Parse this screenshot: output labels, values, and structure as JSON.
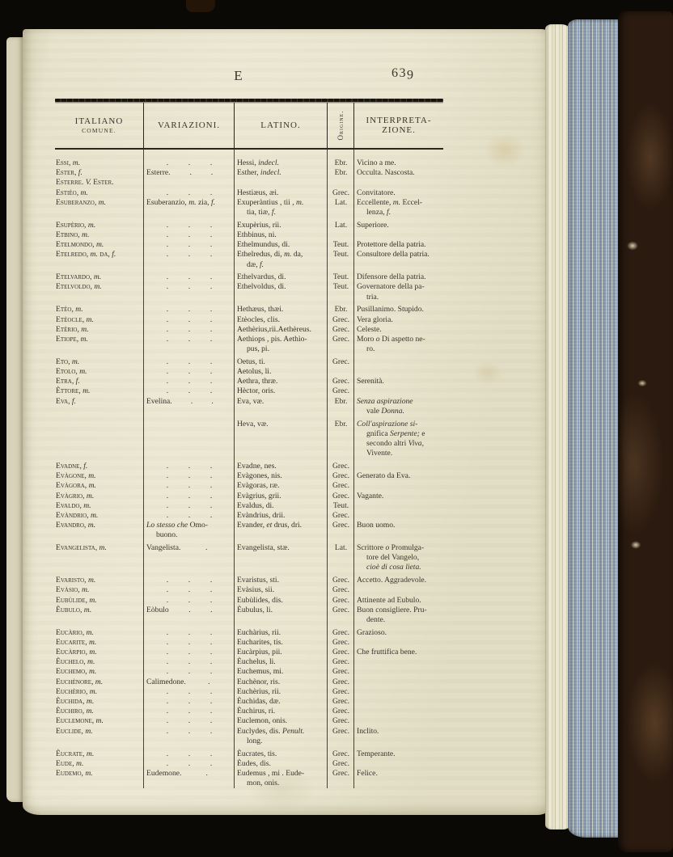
{
  "page": {
    "section_letter": "E",
    "page_number": "639"
  },
  "table": {
    "headers": {
      "italiano_line1": "ITALIANO",
      "italiano_line2": "COMUNE.",
      "variazioni": "VARIAZIONI.",
      "latino": "LATINO.",
      "origine": "Origine.",
      "interpretazione_line1": "INTERPRETA-",
      "interpretazione_line2": "ZIONE."
    },
    "rows": [
      {
        "n": "Essi, *m.*",
        "vd": 3,
        "l": "Hessi, *indecl.*",
        "o": "Ebr.",
        "i": "Vicino a me."
      },
      {
        "n": "Ester, *f.*",
        "v": "Esterre.",
        "vd": 2,
        "l": "Esther, *indecl.*",
        "o": "Ebr.",
        "i": "Occulta. Nascosta."
      },
      {
        "n": "Esterre. *V.* Ester.",
        "l": "",
        "o": "",
        "i": ""
      },
      {
        "n": "Estièo, *m.*",
        "vd": 3,
        "l": "Hestiæus, æi.",
        "o": "Grec.",
        "i": "Convitatore."
      },
      {
        "n": "Esuberanzo, *m.*",
        "v": "Esuberanzio, *m.* zia, *f.*",
        "l": "Exuperàntius , tii , *m.*\ntia, tiæ, *f.*",
        "o": "Lat.",
        "i": "Eccellente, *m.* Eccel-\nlenza, *f.*"
      },
      {
        "g": 1,
        "n": "Esupèrio, *m.*",
        "vd": 3,
        "l": "Exupèrius, rii.",
        "o": "Lat.",
        "i": "Superiore."
      },
      {
        "n": "Etbino, *m.*",
        "vd": 3,
        "l": "Ethbinus, ni.",
        "o": "",
        "i": ""
      },
      {
        "n": "Etelmondo, *m.*",
        "vd": 3,
        "l": "Ethelmundus, di.",
        "o": "Teut.",
        "i": "Protettore della patria."
      },
      {
        "n": "Etelredo, *m.* da, *f.*",
        "vd": 3,
        "l": "Ethelredus, di, *m.* da,\ndæ, *f.*",
        "o": "Teut.",
        "i": "Consultore della patria."
      },
      {
        "g": 1,
        "n": "Etelvardo, *m.*",
        "vd": 3,
        "l": "Ethelvardus, di.",
        "o": "Teut.",
        "i": "Difensore della patria."
      },
      {
        "n": "Etelvoldo, *m.*",
        "vd": 3,
        "l": "Ethelvoldus, di.",
        "o": "Teut.",
        "i": "Governatore della pa-\ntria."
      },
      {
        "g": 1,
        "n": "Etèo, *m.*",
        "vd": 3,
        "l": "Hethæus, thæi.",
        "o": "Ebr.",
        "i": "Pusillanimo. Stupido."
      },
      {
        "n": "Etèocle, *m.*",
        "vd": 3,
        "l": "Etèocles, clis.",
        "o": "Grec.",
        "i": "Vera gloria."
      },
      {
        "n": "Etèrio, *m.*",
        "vd": 3,
        "l": "Aethèrius,rii.Aethèreus.",
        "o": "Grec.",
        "i": "Celeste."
      },
      {
        "n": "Etiope, *m.*",
        "vd": 3,
        "l": "Aethiops , pis. Aethìo-\npus, pi.",
        "o": "Grec.",
        "i": "Moro *o* Di aspetto ne-\nro."
      },
      {
        "g": 1,
        "n": "Eto, *m.*",
        "vd": 3,
        "l": "Oetus, ti.",
        "o": "Grec.",
        "i": ""
      },
      {
        "n": "Etolo, *m.*",
        "vd": 3,
        "l": "Aetolus, li.",
        "o": "",
        "i": ""
      },
      {
        "n": "Etra, *f.*",
        "vd": 3,
        "l": "Aethra, thræ.",
        "o": "Grec.",
        "i": "Serenità."
      },
      {
        "n": "Èttore, *m.*",
        "vd": 3,
        "l": "Hèctor, oris.",
        "o": "Grec.",
        "i": ""
      },
      {
        "n": "Eva, *f.*",
        "v": "Evelina.",
        "vd": 2,
        "l": "Eva, væ.",
        "o": "Ebr.",
        "i": "*Senza aspirazione\nvale* Donna."
      },
      {
        "g": 1,
        "n": "",
        "l": "Heva, væ.",
        "o": "Ebr.",
        "i": "*Coll'aspirazione si-\ngnifica* Serpente; *e\nsecondo altri* Viva,\nVivente."
      },
      {
        "g": 1,
        "n": "Evadne, *f.*",
        "vd": 3,
        "l": "Evadne, nes.",
        "o": "Grec.",
        "i": ""
      },
      {
        "n": "Evàgone, *m.*",
        "vd": 3,
        "l": "Evàgones, nis.",
        "o": "Grec.",
        "i": "Generato da Eva."
      },
      {
        "n": "Evàgora, *m.*",
        "vd": 3,
        "l": "Evàgoras, ræ.",
        "o": "Grec.",
        "i": ""
      },
      {
        "n": "Evàgrio, *m.*",
        "vd": 3,
        "l": "Evàgrius, grii.",
        "o": "Grec.",
        "i": "Vagante."
      },
      {
        "n": "Evaldo, *m.*",
        "vd": 3,
        "l": "Evaldus, di.",
        "o": "Teut.",
        "i": ""
      },
      {
        "n": "Evàndrio, *m.*",
        "vd": 3,
        "l": "Evàndrius, drii.",
        "o": "Grec.",
        "i": ""
      },
      {
        "n": "Evandro, *m.*",
        "v": "*Lo stesso che* Omo-\nbuono.",
        "l": "Evander, *et* drus, dri.",
        "o": "Grec.",
        "i": "Buon uomo."
      },
      {
        "g": 1,
        "n": "Evangelista, *m.*",
        "v": "Vangelista.",
        "vd": 1,
        "l": "Evangelista, stæ.",
        "o": "Lat.",
        "i": "Scrittore *o* Promulga-\ntore del Vangelo,\n*cioè di cosa lieta.*"
      },
      {
        "g": 1,
        "n": "Evaristo, *m.*",
        "vd": 3,
        "l": "Evaristus, sti.",
        "o": "Grec.",
        "i": "Accetto. Aggradevole."
      },
      {
        "n": "Evàsio, *m.*",
        "vd": 3,
        "l": "Evàsius, sii.",
        "o": "Grec.",
        "i": ""
      },
      {
        "n": "Eubùlide, *m.*",
        "vd": 3,
        "l": "Eubùlides, dis.",
        "o": "Grec.",
        "i": "Attinente ad Eubulo."
      },
      {
        "n": "Èubulo, *m.*",
        "v": "Eòbulo",
        "vd": 2,
        "l": "Èubulus, li.",
        "o": "Grec.",
        "i": "Buon consigliere. Pru-\ndente."
      },
      {
        "g": 1,
        "n": "Eucàrio, *m.*",
        "vd": 3,
        "l": "Euchàrius, rii.",
        "o": "Grec.",
        "i": "Grazioso."
      },
      {
        "n": "Eucarite, *m.*",
        "vd": 3,
        "l": "Eucharites, tis.",
        "o": "Grec.",
        "i": ""
      },
      {
        "n": "Eucàrpio, *m.*",
        "vd": 3,
        "l": "Eucàrpius, pii.",
        "o": "Grec.",
        "i": "Che fruttifica bene."
      },
      {
        "n": "Èuchelo, *m.*",
        "vd": 3,
        "l": "Èuchelus, li.",
        "o": "Grec.",
        "i": ""
      },
      {
        "n": "Euchemo, *m.*",
        "vd": 3,
        "l": "Euchemus, mi.",
        "o": "Grec.",
        "i": ""
      },
      {
        "n": "Euchènore, *m.*",
        "v": "Calimedone.",
        "vd": 1,
        "l": "Euchènor, ris.",
        "o": "Grec.",
        "i": ""
      },
      {
        "n": "Euchèrio, *m.*",
        "vd": 3,
        "l": "Euchèrius, rii.",
        "o": "Grec.",
        "i": ""
      },
      {
        "n": "Èuchida, *m.*",
        "vd": 3,
        "l": "Èuchidas, dæ.",
        "o": "Grec.",
        "i": ""
      },
      {
        "n": "Èuchiro, *m.*",
        "vd": 3,
        "l": "Èuchirus, ri.",
        "o": "Grec.",
        "i": ""
      },
      {
        "n": "Euclemone, *m.*",
        "vd": 3,
        "l": "Euclemon, onis.",
        "o": "Grec.",
        "i": ""
      },
      {
        "n": "Euclide, *m.*",
        "vd": 3,
        "l": "Euclydes, dis. *Penult.\nlong.*",
        "o": "Grec.",
        "i": "Inclito."
      },
      {
        "g": 1,
        "n": "Èucrate, *m.*",
        "vd": 3,
        "l": "Èucrates, tis.",
        "o": "Grec.",
        "i": "Temperante."
      },
      {
        "n": "Eude, *m.*",
        "vd": 3,
        "l": "Èudes, dis.",
        "o": "Grec.",
        "i": ""
      },
      {
        "n": "Eudemo, *m.*",
        "v": "Eudemone.",
        "vd": 1,
        "l": "Eudemus , mi . Eude-\nmon, onis.",
        "o": "Grec.",
        "i": "Felice."
      }
    ]
  },
  "colors": {
    "background": "#0b0906",
    "page": "#eae6d0",
    "ink": "#36322a",
    "rule": "#2b261f",
    "marble_blue": "#8fa0b2",
    "cover_brown": "#2e1d11",
    "page_edge_cream": "#e0dbc2"
  }
}
